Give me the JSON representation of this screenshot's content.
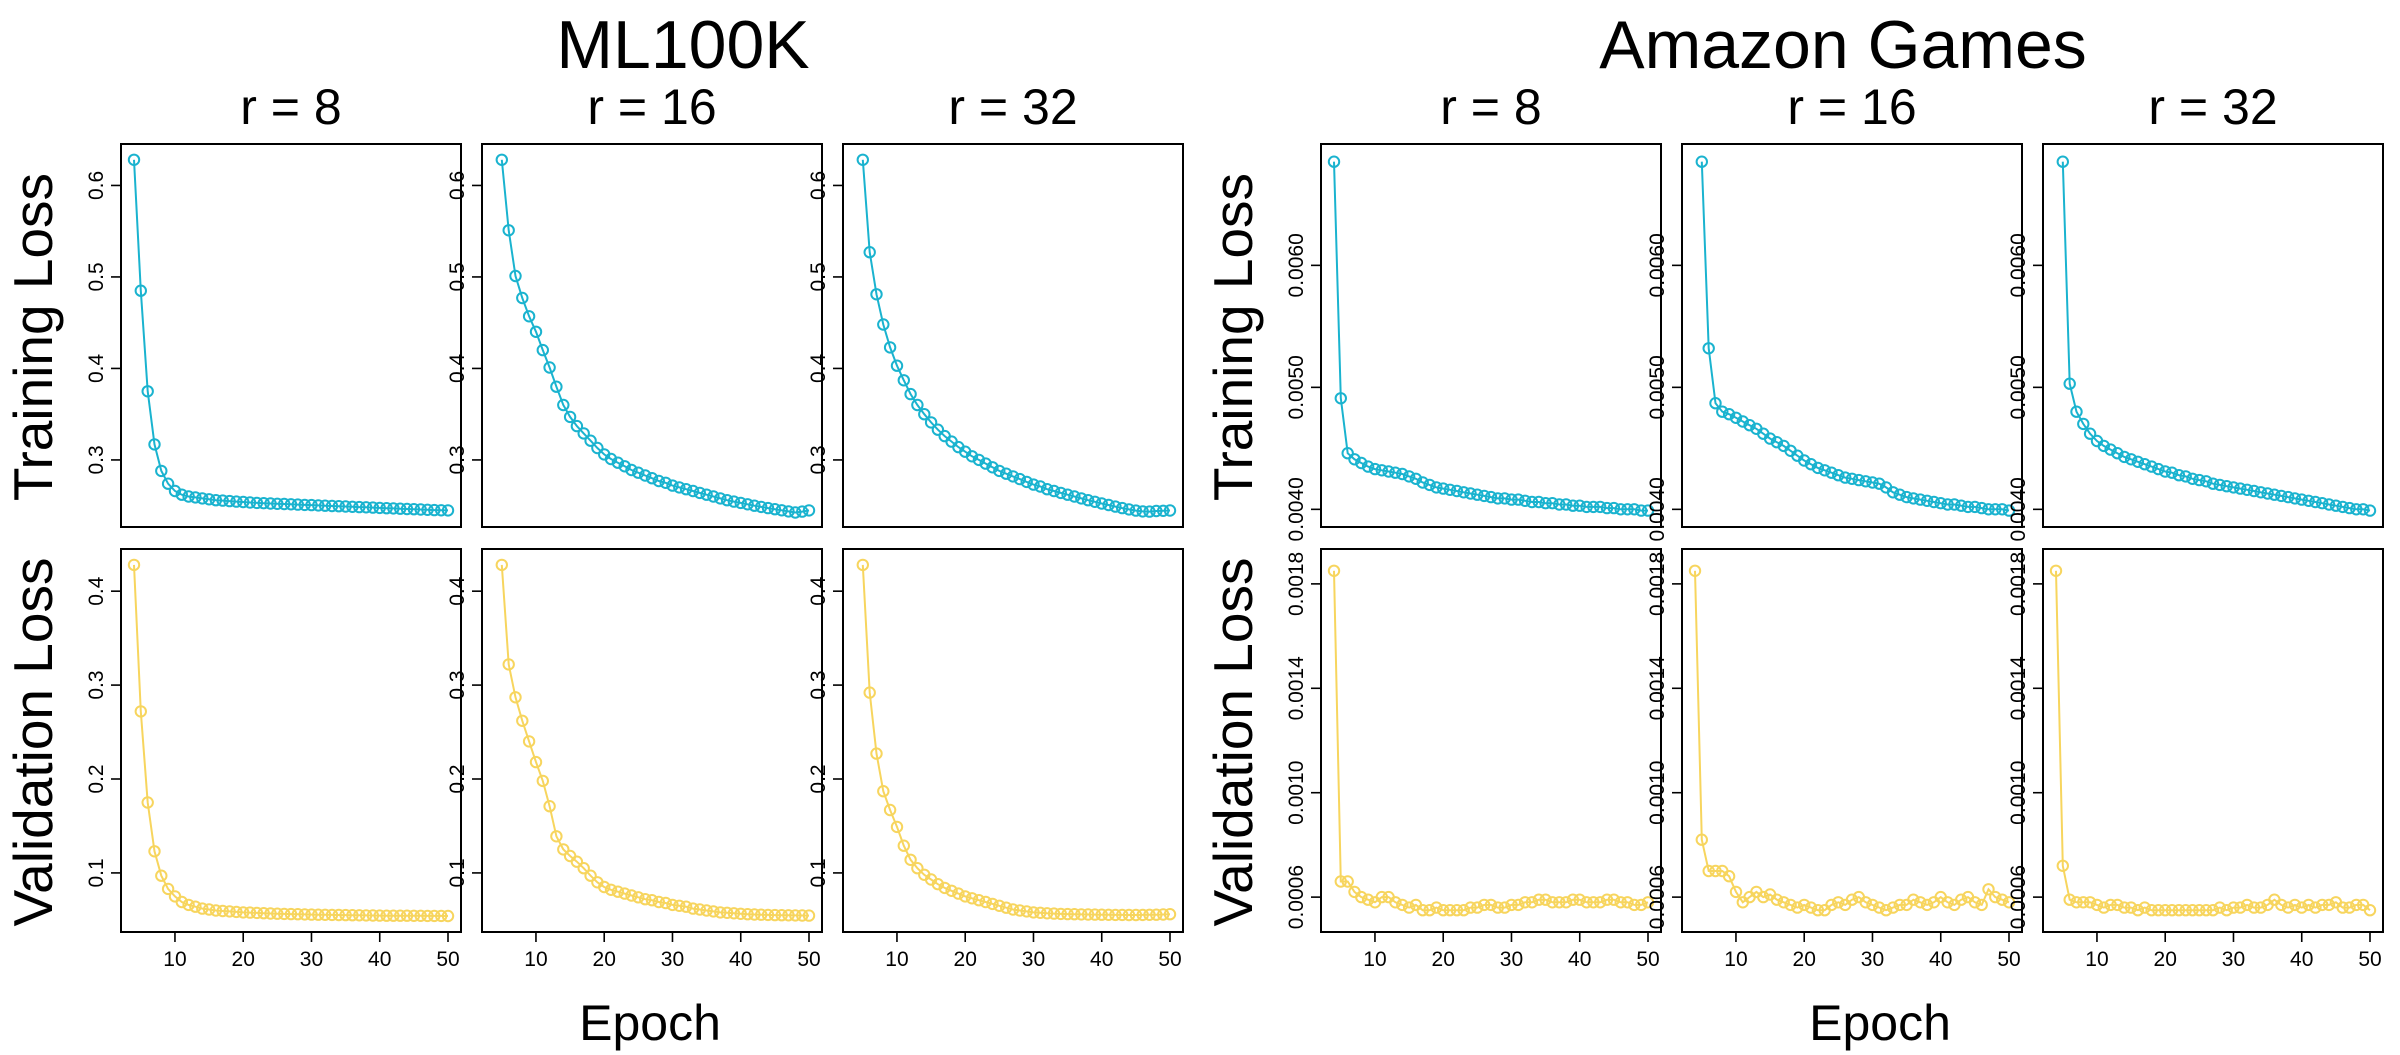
{
  "figure": {
    "groups": [
      {
        "title": "ML100K"
      },
      {
        "title": "Amazon Games"
      }
    ],
    "xlabel": "Epoch",
    "row_labels": [
      "Training Loss",
      "Validation Loss"
    ]
  },
  "colors": {
    "training": "#1AB3CF",
    "validation": "#F7D55E",
    "axis": "#000000"
  },
  "chart_data": [
    {
      "type": "line",
      "dataset": "ML100K",
      "title": "r = 8",
      "ylabel": "Training Loss",
      "series_color": "training",
      "xlim": [
        4,
        50
      ],
      "ylim": [
        0.242,
        0.63
      ],
      "xticks": [
        10,
        20,
        30,
        40,
        50
      ],
      "yticks": [
        0.3,
        0.4,
        0.5,
        0.6
      ],
      "ytick_labels": [
        "0.3",
        "0.4",
        "0.5",
        "0.6"
      ],
      "x_start": 4,
      "x_end": 50,
      "values": [
        0.628,
        0.485,
        0.375,
        0.317,
        0.288,
        0.274,
        0.266,
        0.262,
        0.26,
        0.259,
        0.258,
        0.257,
        0.256,
        0.2555,
        0.255,
        0.2545,
        0.254,
        0.2535,
        0.253,
        0.2527,
        0.2524,
        0.2521,
        0.2518,
        0.2515,
        0.2512,
        0.2509,
        0.2506,
        0.2503,
        0.25,
        0.2497,
        0.2494,
        0.2491,
        0.2488,
        0.2485,
        0.2482,
        0.2479,
        0.2476,
        0.2473,
        0.247,
        0.2467,
        0.2464,
        0.2461,
        0.2458,
        0.2455,
        0.2452,
        0.245,
        0.2448
      ]
    },
    {
      "type": "line",
      "dataset": "ML100K",
      "title": "r = 16",
      "ylabel": "Training Loss",
      "series_color": "training",
      "xlim": [
        4,
        50
      ],
      "ylim": [
        0.242,
        0.63
      ],
      "xticks": [
        10,
        20,
        30,
        40,
        50
      ],
      "yticks": [
        0.3,
        0.4,
        0.5,
        0.6
      ],
      "ytick_labels": [
        "0.3",
        "0.4",
        "0.5",
        "0.6"
      ],
      "x_start": 5,
      "x_end": 50,
      "values": [
        0.628,
        0.551,
        0.501,
        0.477,
        0.457,
        0.44,
        0.42,
        0.401,
        0.38,
        0.36,
        0.347,
        0.337,
        0.329,
        0.321,
        0.313,
        0.306,
        0.301,
        0.297,
        0.293,
        0.289,
        0.286,
        0.283,
        0.28,
        0.277,
        0.275,
        0.272,
        0.27,
        0.268,
        0.266,
        0.264,
        0.262,
        0.26,
        0.258,
        0.256,
        0.2545,
        0.253,
        0.2515,
        0.25,
        0.2487,
        0.2474,
        0.2461,
        0.2449,
        0.2437,
        0.2425,
        0.2435,
        0.2448
      ]
    },
    {
      "type": "line",
      "dataset": "ML100K",
      "title": "r = 32",
      "ylabel": "Training Loss",
      "series_color": "training",
      "xlim": [
        4,
        50
      ],
      "ylim": [
        0.242,
        0.63
      ],
      "xticks": [
        10,
        20,
        30,
        40,
        50
      ],
      "yticks": [
        0.3,
        0.4,
        0.5,
        0.6
      ],
      "ytick_labels": [
        "0.3",
        "0.4",
        "0.5",
        "0.6"
      ],
      "x_start": 5,
      "x_end": 50,
      "values": [
        0.628,
        0.527,
        0.481,
        0.448,
        0.423,
        0.403,
        0.387,
        0.372,
        0.36,
        0.35,
        0.341,
        0.333,
        0.326,
        0.32,
        0.314,
        0.309,
        0.304,
        0.3,
        0.296,
        0.292,
        0.288,
        0.285,
        0.282,
        0.279,
        0.276,
        0.273,
        0.271,
        0.268,
        0.266,
        0.264,
        0.262,
        0.26,
        0.258,
        0.256,
        0.2542,
        0.2524,
        0.2507,
        0.249,
        0.2474,
        0.2459,
        0.2446,
        0.2437,
        0.2435,
        0.2442,
        0.2444,
        0.2447
      ]
    },
    {
      "type": "line",
      "dataset": "ML100K",
      "title": "r = 8",
      "ylabel": "Validation Loss",
      "series_color": "validation",
      "xlim": [
        4,
        50
      ],
      "ylim": [
        0.052,
        0.43
      ],
      "xticks": [
        10,
        20,
        30,
        40,
        50
      ],
      "yticks": [
        0.1,
        0.2,
        0.3,
        0.4
      ],
      "ytick_labels": [
        "0.1",
        "0.2",
        "0.3",
        "0.4"
      ],
      "x_start": 4,
      "x_end": 50,
      "values": [
        0.428,
        0.272,
        0.175,
        0.123,
        0.097,
        0.083,
        0.075,
        0.069,
        0.066,
        0.064,
        0.062,
        0.061,
        0.06,
        0.0595,
        0.059,
        0.0585,
        0.058,
        0.0577,
        0.0574,
        0.0571,
        0.0568,
        0.0566,
        0.0564,
        0.0562,
        0.056,
        0.0558,
        0.0556,
        0.0555,
        0.0554,
        0.0553,
        0.0552,
        0.0551,
        0.055,
        0.0549,
        0.0548,
        0.0547,
        0.0546,
        0.0545,
        0.0545,
        0.0544,
        0.0544,
        0.0543,
        0.0543,
        0.0542,
        0.0542,
        0.0542,
        0.0541
      ]
    },
    {
      "type": "line",
      "dataset": "ML100K",
      "title": "r = 16",
      "ylabel": "Validation Loss",
      "series_color": "validation",
      "xlim": [
        4,
        50
      ],
      "ylim": [
        0.052,
        0.43
      ],
      "xticks": [
        10,
        20,
        30,
        40,
        50
      ],
      "yticks": [
        0.1,
        0.2,
        0.3,
        0.4
      ],
      "ytick_labels": [
        "0.1",
        "0.2",
        "0.3",
        "0.4"
      ],
      "x_start": 5,
      "x_end": 50,
      "values": [
        0.428,
        0.322,
        0.287,
        0.262,
        0.24,
        0.218,
        0.198,
        0.171,
        0.139,
        0.125,
        0.118,
        0.112,
        0.105,
        0.097,
        0.09,
        0.085,
        0.082,
        0.08,
        0.078,
        0.076,
        0.074,
        0.072,
        0.071,
        0.069,
        0.068,
        0.066,
        0.065,
        0.064,
        0.062,
        0.061,
        0.06,
        0.059,
        0.058,
        0.0575,
        0.057,
        0.0565,
        0.056,
        0.0557,
        0.0555,
        0.0553,
        0.0551,
        0.055,
        0.0549,
        0.0548,
        0.0547,
        0.0546
      ]
    },
    {
      "type": "line",
      "dataset": "ML100K",
      "title": "r = 32",
      "ylabel": "Validation Loss",
      "series_color": "validation",
      "xlim": [
        4,
        50
      ],
      "ylim": [
        0.052,
        0.43
      ],
      "xticks": [
        10,
        20,
        30,
        40,
        50
      ],
      "yticks": [
        0.1,
        0.2,
        0.3,
        0.4
      ],
      "ytick_labels": [
        "0.1",
        "0.2",
        "0.3",
        "0.4"
      ],
      "x_start": 5,
      "x_end": 50,
      "values": [
        0.428,
        0.292,
        0.227,
        0.187,
        0.167,
        0.149,
        0.129,
        0.114,
        0.105,
        0.098,
        0.093,
        0.088,
        0.084,
        0.081,
        0.078,
        0.075,
        0.073,
        0.071,
        0.069,
        0.067,
        0.065,
        0.063,
        0.061,
        0.06,
        0.059,
        0.058,
        0.0575,
        0.057,
        0.0567,
        0.0564,
        0.0562,
        0.056,
        0.0558,
        0.0557,
        0.0556,
        0.0555,
        0.0554,
        0.0553,
        0.0553,
        0.0552,
        0.0552,
        0.0553,
        0.0554,
        0.0555,
        0.0557,
        0.056
      ]
    },
    {
      "type": "line",
      "dataset": "Amazon Games",
      "title": "r = 8",
      "ylabel": "Training Loss",
      "series_color": "training",
      "xlim": [
        4,
        50
      ],
      "ylim": [
        0.00397,
        0.00688
      ],
      "xticks": [
        10,
        20,
        30,
        40,
        50
      ],
      "yticks": [
        0.004,
        0.005,
        0.006
      ],
      "ytick_labels": [
        "0.0040",
        "0.0050",
        "0.0060"
      ],
      "x_start": 4,
      "x_end": 50,
      "values": [
        0.00685,
        0.00491,
        0.00446,
        0.00441,
        0.00438,
        0.00435,
        0.00433,
        0.00432,
        0.00431,
        0.0043,
        0.00429,
        0.00427,
        0.00425,
        0.00422,
        0.0042,
        0.00418,
        0.00417,
        0.00416,
        0.00415,
        0.00414,
        0.00413,
        0.00412,
        0.00411,
        0.0041,
        0.00409,
        0.00409,
        0.00408,
        0.00408,
        0.00407,
        0.00406,
        0.00406,
        0.00405,
        0.00405,
        0.00404,
        0.00404,
        0.00403,
        0.00403,
        0.00402,
        0.00402,
        0.00402,
        0.00401,
        0.00401,
        0.004,
        0.004,
        0.004,
        0.00399,
        0.00399
      ]
    },
    {
      "type": "line",
      "dataset": "Amazon Games",
      "title": "r = 16",
      "ylabel": "Training Loss",
      "series_color": "training",
      "xlim": [
        4,
        50
      ],
      "ylim": [
        0.00397,
        0.00688
      ],
      "xticks": [
        10,
        20,
        30,
        40,
        50
      ],
      "yticks": [
        0.004,
        0.005,
        0.006
      ],
      "ytick_labels": [
        "0.0040",
        "0.0050",
        "0.0060"
      ],
      "x_start": 5,
      "x_end": 50,
      "values": [
        0.00685,
        0.00532,
        0.00487,
        0.0048,
        0.00478,
        0.00475,
        0.00472,
        0.00469,
        0.00466,
        0.00462,
        0.00458,
        0.00455,
        0.00452,
        0.00448,
        0.00444,
        0.0044,
        0.00437,
        0.00434,
        0.00432,
        0.0043,
        0.00428,
        0.00426,
        0.00425,
        0.00424,
        0.00423,
        0.00422,
        0.00421,
        0.00418,
        0.00414,
        0.00412,
        0.0041,
        0.00409,
        0.00408,
        0.00407,
        0.00406,
        0.00405,
        0.00404,
        0.00404,
        0.00403,
        0.00402,
        0.00402,
        0.00401,
        0.004,
        0.004,
        0.004,
        0.00399
      ]
    },
    {
      "type": "line",
      "dataset": "Amazon Games",
      "title": "r = 32",
      "ylabel": "Training Loss",
      "series_color": "training",
      "xlim": [
        4,
        50
      ],
      "ylim": [
        0.00397,
        0.00688
      ],
      "xticks": [
        10,
        20,
        30,
        40,
        50
      ],
      "yticks": [
        0.004,
        0.005,
        0.006
      ],
      "ytick_labels": [
        "0.0040",
        "0.0050",
        "0.0060"
      ],
      "x_start": 5,
      "x_end": 50,
      "values": [
        0.00685,
        0.00503,
        0.0048,
        0.0047,
        0.00462,
        0.00456,
        0.00452,
        0.00449,
        0.00446,
        0.00443,
        0.00441,
        0.00439,
        0.00437,
        0.00435,
        0.00433,
        0.00431,
        0.0043,
        0.00428,
        0.00427,
        0.00425,
        0.00424,
        0.00423,
        0.00421,
        0.0042,
        0.00419,
        0.00418,
        0.00417,
        0.00416,
        0.00415,
        0.00414,
        0.00413,
        0.00412,
        0.00411,
        0.0041,
        0.00409,
        0.00408,
        0.00407,
        0.00406,
        0.00405,
        0.00404,
        0.00403,
        0.00402,
        0.00401,
        0.004,
        0.004,
        0.00399
      ]
    },
    {
      "type": "line",
      "dataset": "Amazon Games",
      "title": "r = 8",
      "ylabel": "Validation Loss",
      "series_color": "validation",
      "xlim": [
        4,
        50
      ],
      "ylim": [
        0.00052,
        0.00188
      ],
      "xticks": [
        10,
        20,
        30,
        40,
        50
      ],
      "yticks": [
        0.0006,
        0.001,
        0.0014,
        0.0018
      ],
      "ytick_labels": [
        "0.0006",
        "0.0010",
        "0.0014",
        "0.0018"
      ],
      "x_start": 4,
      "x_end": 50,
      "values": [
        0.00185,
        0.00066,
        0.00066,
        0.00062,
        0.0006,
        0.00059,
        0.00058,
        0.0006,
        0.0006,
        0.00058,
        0.00057,
        0.00056,
        0.00057,
        0.00055,
        0.00055,
        0.00056,
        0.00055,
        0.00055,
        0.00055,
        0.00055,
        0.00056,
        0.00056,
        0.00057,
        0.00057,
        0.00056,
        0.00056,
        0.00057,
        0.00057,
        0.00058,
        0.00058,
        0.00059,
        0.00059,
        0.00058,
        0.00058,
        0.00058,
        0.00059,
        0.00059,
        0.00058,
        0.00058,
        0.00058,
        0.00059,
        0.00059,
        0.00058,
        0.00058,
        0.00057,
        0.00057,
        0.00058
      ]
    },
    {
      "type": "line",
      "dataset": "Amazon Games",
      "title": "r = 16",
      "ylabel": "Validation Loss",
      "series_color": "validation",
      "xlim": [
        4,
        50
      ],
      "ylim": [
        0.00052,
        0.00188
      ],
      "xticks": [
        10,
        20,
        30,
        40,
        50
      ],
      "yticks": [
        0.0006,
        0.001,
        0.0014,
        0.0018
      ],
      "ytick_labels": [
        "0.0006",
        "0.0010",
        "0.0014",
        "0.0018"
      ],
      "x_start": 4,
      "x_end": 50,
      "values": [
        0.00185,
        0.00082,
        0.0007,
        0.0007,
        0.0007,
        0.00068,
        0.00062,
        0.00058,
        0.0006,
        0.00062,
        0.0006,
        0.00061,
        0.00059,
        0.00058,
        0.00057,
        0.00056,
        0.00057,
        0.00056,
        0.00055,
        0.00055,
        0.00057,
        0.00058,
        0.00057,
        0.00059,
        0.0006,
        0.00058,
        0.00057,
        0.00056,
        0.00055,
        0.00056,
        0.00057,
        0.00057,
        0.00059,
        0.00058,
        0.00057,
        0.00058,
        0.0006,
        0.00058,
        0.00057,
        0.00059,
        0.0006,
        0.00058,
        0.00057,
        0.00063,
        0.0006,
        0.00059,
        0.00058
      ]
    },
    {
      "type": "line",
      "dataset": "Amazon Games",
      "title": "r = 32",
      "ylabel": "Validation Loss",
      "series_color": "validation",
      "xlim": [
        4,
        50
      ],
      "ylim": [
        0.00052,
        0.00188
      ],
      "xticks": [
        10,
        20,
        30,
        40,
        50
      ],
      "yticks": [
        0.0006,
        0.001,
        0.0014,
        0.0018
      ],
      "ytick_labels": [
        "0.0006",
        "0.0010",
        "0.0014",
        "0.0018"
      ],
      "x_start": 4,
      "x_end": 50,
      "values": [
        0.00185,
        0.00072,
        0.00059,
        0.00058,
        0.00058,
        0.00058,
        0.00057,
        0.00056,
        0.00057,
        0.00057,
        0.00056,
        0.00056,
        0.00055,
        0.00056,
        0.00055,
        0.00055,
        0.00055,
        0.00055,
        0.00055,
        0.00055,
        0.00055,
        0.00055,
        0.00055,
        0.00055,
        0.00056,
        0.00055,
        0.00056,
        0.00056,
        0.00057,
        0.00056,
        0.00056,
        0.00057,
        0.00059,
        0.00057,
        0.00056,
        0.00057,
        0.00056,
        0.00057,
        0.00056,
        0.00057,
        0.00057,
        0.00058,
        0.00056,
        0.00056,
        0.00057,
        0.00057,
        0.00055
      ]
    }
  ]
}
